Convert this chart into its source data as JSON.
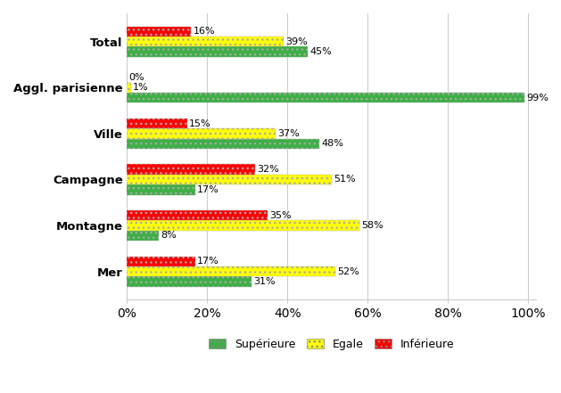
{
  "categories": [
    "Total",
    "Aggl. parisienne",
    "Ville",
    "Campagne",
    "Montagne",
    "Mer"
  ],
  "superieure": [
    45,
    99,
    48,
    17,
    8,
    31
  ],
  "egale": [
    39,
    1,
    37,
    51,
    58,
    52
  ],
  "inferieure": [
    16,
    0,
    15,
    32,
    35,
    17
  ],
  "color_superieure": "#3cb044",
  "color_egale": "#ffff00",
  "color_inferieure": "#ff0000",
  "legend_labels": [
    "Supérieure",
    "Egale",
    "Inférieure"
  ],
  "xlim": [
    0,
    100
  ],
  "bar_height": 0.22,
  "bg_color": "#ffffff",
  "grid_color": "#cccccc",
  "hatch": "..."
}
